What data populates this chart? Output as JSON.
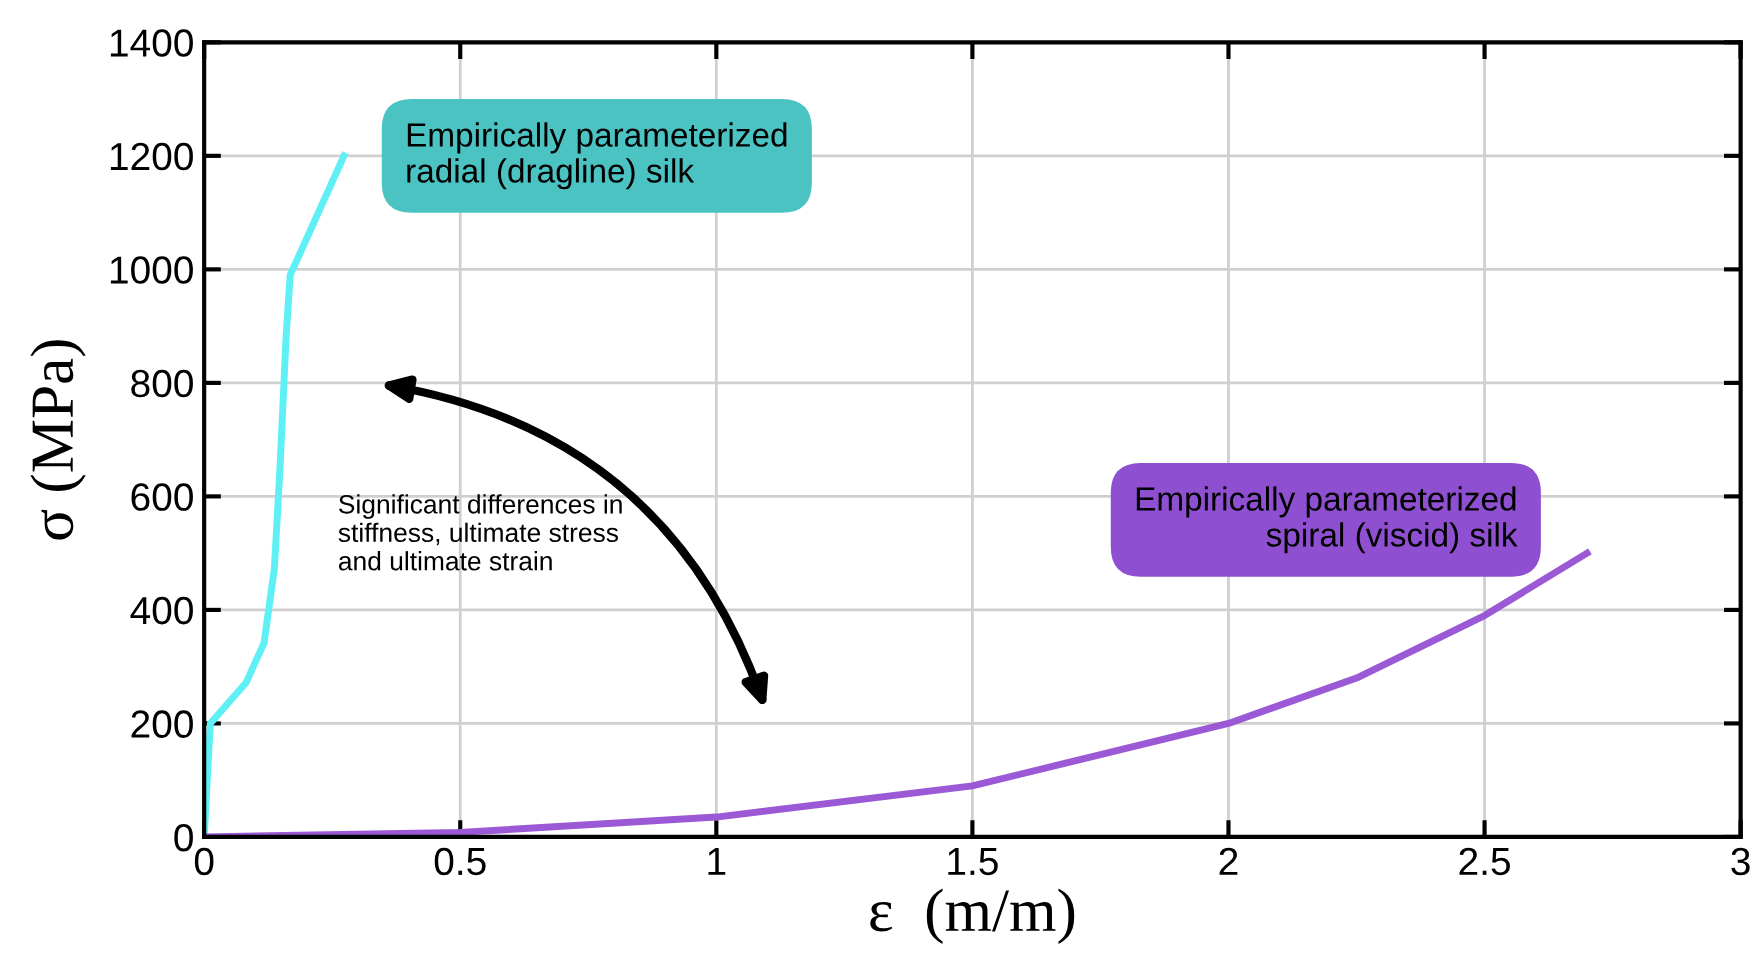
{
  "chart_data": {
    "type": "line",
    "xlabel": "ε  (m/m)",
    "ylabel": "σ (MPa)",
    "xlim": [
      0,
      3
    ],
    "ylim": [
      0,
      1400
    ],
    "xticks": [
      0,
      0.5,
      1,
      1.5,
      2,
      2.5,
      3
    ],
    "yticks": [
      0,
      200,
      400,
      600,
      800,
      1000,
      1200,
      1400
    ],
    "grid": true,
    "series": [
      {
        "name": "Empirically parameterized radial (dragline) silk",
        "color": "#5ff0f5",
        "x": [
          0,
          0.012,
          0.082,
          0.117,
          0.137,
          0.148,
          0.16,
          0.168,
          0.273
        ],
        "values": [
          0,
          200,
          272,
          342,
          472,
          649,
          882,
          990,
          1200
        ]
      },
      {
        "name": "Empirically parameterized spiral (viscid) silk",
        "color": "#9b59d6",
        "x": [
          0,
          0.5,
          1,
          1.5,
          2,
          2.25,
          2.5,
          2.7
        ],
        "values": [
          0,
          8,
          35,
          90,
          200,
          280,
          390,
          500
        ]
      }
    ],
    "annotations": [
      "Significant differences in stiffness, ultimate stress and ultimate strain"
    ]
  }
}
